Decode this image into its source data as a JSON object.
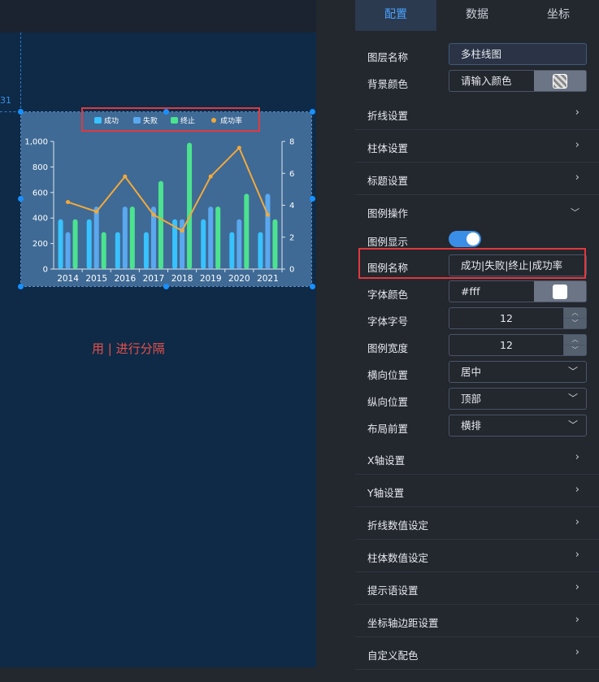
{
  "canvas": {
    "guide_number": "31",
    "hint": "用 | 进行分隔"
  },
  "chart_data": {
    "type": "bar",
    "categories": [
      "2014",
      "2015",
      "2016",
      "2017",
      "2018",
      "2019",
      "2020",
      "2021"
    ],
    "series": [
      {
        "name": "成功",
        "type": "bar",
        "color": "#38c2ff",
        "values": [
          390,
          390,
          290,
          290,
          390,
          390,
          290,
          290
        ]
      },
      {
        "name": "失败",
        "type": "bar",
        "color": "#5aa8ee",
        "values": [
          290,
          490,
          490,
          490,
          390,
          490,
          390,
          590
        ]
      },
      {
        "name": "终止",
        "type": "bar",
        "color": "#4be38f",
        "values": [
          390,
          290,
          490,
          690,
          990,
          490,
          590,
          390
        ]
      },
      {
        "name": "成功率",
        "type": "line",
        "color": "#f2a93b",
        "axis": "right",
        "values": [
          4.2,
          3.6,
          5.8,
          3.4,
          2.4,
          5.8,
          7.6,
          3.4
        ]
      }
    ],
    "y_left": {
      "min": 0,
      "max": 1000,
      "ticks": [
        "0",
        "200",
        "400",
        "600",
        "800",
        "1,000"
      ]
    },
    "y_right": {
      "min": 0,
      "max": 8,
      "ticks": [
        "0",
        "2",
        "4",
        "6",
        "8"
      ]
    },
    "legend_position": "top-center",
    "background": "#3f6a95"
  },
  "panel": {
    "tabs": [
      {
        "label": "配置",
        "active": true
      },
      {
        "label": "数据",
        "active": false
      },
      {
        "label": "坐标",
        "active": false
      }
    ],
    "layer_name_label": "图层名称",
    "layer_name_value": "多柱线图",
    "bg_color_label": "背景颜色",
    "bg_color_placeholder": "请输入颜色",
    "sections_top": [
      "折线设置",
      "柱体设置",
      "标题设置"
    ],
    "legend_ops_label": "图例操作",
    "legend_show_label": "图例显示",
    "legend_name_label": "图例名称",
    "legend_name_value": "成功|失败|终止|成功率",
    "font_color_label": "字体颜色",
    "font_color_value": "#fff",
    "font_size_label": "字体字号",
    "font_size_value": "12",
    "legend_width_label": "图例宽度",
    "legend_width_value": "12",
    "h_pos_label": "横向位置",
    "h_pos_value": "居中",
    "v_pos_label": "纵向位置",
    "v_pos_value": "顶部",
    "layout_label": "布局前置",
    "layout_value": "横排",
    "sections_bottom": [
      "X轴设置",
      "Y轴设置",
      "折线数值设定",
      "柱体数值设定",
      "提示语设置",
      "坐标轴边距设置",
      "自定义配色"
    ]
  },
  "colors": {
    "accent": "#4aa3ff",
    "highlight": "#e0393e",
    "toggle": "#3a8ee6"
  }
}
